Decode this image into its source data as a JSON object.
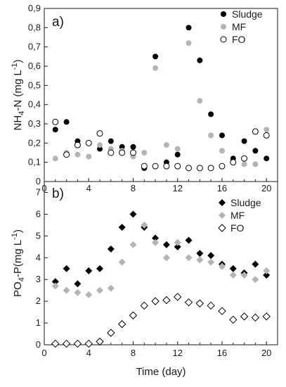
{
  "chart_data": [
    {
      "type": "scatter",
      "panel_label": "a)",
      "ylabel": {
        "base": "NH",
        "sub": "4",
        "rest": "-N (mg L",
        "sup": "-1",
        "end": ")"
      },
      "ylim": [
        0,
        0.9
      ],
      "yticks": [
        0,
        0.1,
        0.2,
        0.3,
        0.4,
        0.5,
        0.6,
        0.7,
        0.8,
        0.9
      ],
      "ytick_labels": [
        "0",
        "0,1",
        "0,2",
        "0,3",
        "0,4",
        "0,5",
        "0,6",
        "0,7",
        "0,8",
        "0,9"
      ],
      "xlim": [
        0,
        21
      ],
      "xticks": [
        0,
        4,
        8,
        12,
        16,
        20
      ],
      "xtick_labels": [
        "0",
        "4",
        "8",
        "12",
        "16",
        "20"
      ],
      "legend_position": "top-right",
      "series": [
        {
          "name": "Sludge",
          "marker": "circle-filled",
          "color": "#000000",
          "x": [
            1,
            2,
            3,
            4,
            5,
            6,
            7,
            8,
            9,
            10,
            11,
            12,
            13,
            14,
            15,
            16,
            17,
            18,
            19,
            20
          ],
          "y": [
            0.27,
            0.31,
            0.21,
            0.2,
            0.17,
            0.21,
            0.18,
            0.18,
            0.07,
            0.65,
            0.1,
            0.14,
            0.8,
            0.63,
            0.35,
            0.24,
            0.12,
            0.21,
            0.16,
            0.12
          ]
        },
        {
          "name": "MF",
          "marker": "circle-filled",
          "color": "#b4b4b4",
          "x": [
            1,
            2,
            3,
            4,
            5,
            6,
            7,
            8,
            9,
            10,
            11,
            12,
            13,
            14,
            15,
            16,
            17,
            18,
            19,
            20
          ],
          "y": [
            0.12,
            0.15,
            0.14,
            0.13,
            0.19,
            0.17,
            0.16,
            0.13,
            0.15,
            0.59,
            0.19,
            0.17,
            0.72,
            0.42,
            0.24,
            0.16,
            0.1,
            0.09,
            0.09,
            0.27
          ]
        },
        {
          "name": "FO",
          "marker": "circle-open",
          "color": "#000000",
          "x": [
            1,
            2,
            3,
            4,
            5,
            6,
            7,
            8,
            9,
            10,
            11,
            12,
            13,
            14,
            15,
            16,
            17,
            18,
            19,
            20
          ],
          "y": [
            0.31,
            0.14,
            0.19,
            0.2,
            0.25,
            0.15,
            0.15,
            0.15,
            0.08,
            0.08,
            0.08,
            0.08,
            0.07,
            0.07,
            0.07,
            0.08,
            0.1,
            0.12,
            0.26,
            0.24
          ]
        }
      ]
    },
    {
      "type": "scatter",
      "panel_label": "b)",
      "ylabel": {
        "base": "PO",
        "sub": "4",
        "rest": "-P(mg L",
        "sup": "-1",
        "end": ")"
      },
      "xlabel": "Time (day)",
      "ylim": [
        0,
        7.5
      ],
      "yticks": [
        0,
        1,
        2,
        3,
        4,
        5,
        6,
        7
      ],
      "ytick_labels": [
        "0",
        "1",
        "2",
        "3",
        "4",
        "5",
        "6",
        "7"
      ],
      "xlim": [
        0,
        21
      ],
      "xticks": [
        0,
        4,
        8,
        12,
        16,
        20
      ],
      "xtick_labels": [
        "0",
        "4",
        "8",
        "12",
        "16",
        "20"
      ],
      "legend_position": "top-right",
      "series": [
        {
          "name": "Sludge",
          "marker": "diamond-filled",
          "color": "#000000",
          "x": [
            1,
            2,
            3,
            4,
            5,
            6,
            7,
            8,
            9,
            10,
            11,
            12,
            13,
            14,
            15,
            16,
            17,
            18,
            19,
            20
          ],
          "y": [
            2.9,
            3.5,
            2.8,
            3.4,
            3.5,
            4.4,
            5.4,
            6.0,
            5.4,
            4.9,
            4.6,
            4.5,
            4.8,
            4.2,
            4.1,
            3.7,
            3.5,
            3.3,
            3.7,
            3.2
          ]
        },
        {
          "name": "MF",
          "marker": "diamond-filled",
          "color": "#b4b4b4",
          "x": [
            1,
            2,
            3,
            4,
            5,
            6,
            7,
            8,
            9,
            10,
            11,
            12,
            13,
            14,
            15,
            16,
            17,
            18,
            19,
            20
          ],
          "y": [
            2.7,
            2.5,
            2.4,
            2.3,
            2.5,
            2.6,
            3.8,
            4.6,
            5.5,
            4.7,
            4.0,
            4.7,
            4.0,
            3.9,
            3.8,
            3.6,
            3.2,
            3.2,
            3.0,
            3.4
          ]
        },
        {
          "name": "FO",
          "marker": "diamond-open",
          "color": "#000000",
          "x": [
            1,
            2,
            3,
            4,
            5,
            6,
            7,
            8,
            9,
            10,
            11,
            12,
            13,
            14,
            15,
            16,
            17,
            18,
            19,
            20
          ],
          "y": [
            0.05,
            0.05,
            0.05,
            0.05,
            0.15,
            0.55,
            0.95,
            1.35,
            1.8,
            2.0,
            2.05,
            2.2,
            1.95,
            1.9,
            1.8,
            1.55,
            1.15,
            1.3,
            1.25,
            1.3
          ]
        }
      ]
    }
  ]
}
